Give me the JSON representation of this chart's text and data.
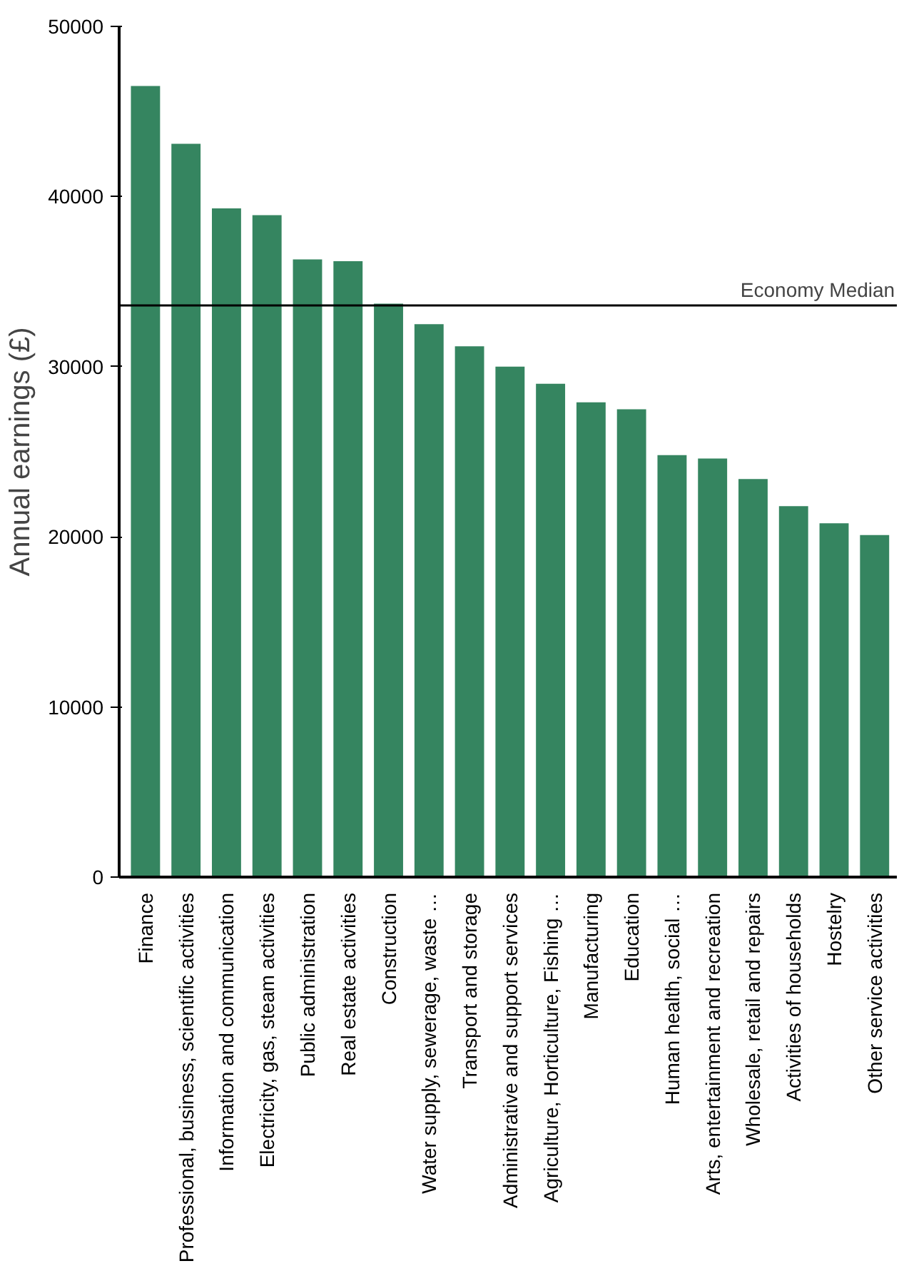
{
  "chart_data": {
    "type": "bar",
    "ylabel": "Annual earnings (£)",
    "categories": [
      "Finance",
      "Professional, business, scientific activities",
      "Information and communication",
      "Electricity, gas, steam activities",
      "Public administration",
      "Real estate activities",
      "Construction",
      "Water supply, sewerage, waste …",
      "Transport and storage",
      "Administrative and support services",
      "Agriculture, Horticulture, Fishing …",
      "Manufacturing",
      "Education",
      "Human health, social …",
      "Arts, entertainment and recreation",
      "Wholesale, retail and repairs",
      "Activities of households",
      "Hostelry",
      "Other service activities"
    ],
    "values": [
      46500,
      43100,
      39300,
      38900,
      36300,
      36200,
      33700,
      32500,
      31200,
      30000,
      29000,
      27900,
      27500,
      24800,
      24600,
      23400,
      21800,
      20800,
      20100
    ],
    "color": "#358560",
    "ylim": [
      0,
      50000
    ],
    "yticks": [
      0,
      10000,
      20000,
      30000,
      40000,
      50000
    ],
    "ref_lines": [
      {
        "axis": "y",
        "value": 33600,
        "label": "Economy Median",
        "color": "#000000"
      }
    ],
    "grid": false
  }
}
